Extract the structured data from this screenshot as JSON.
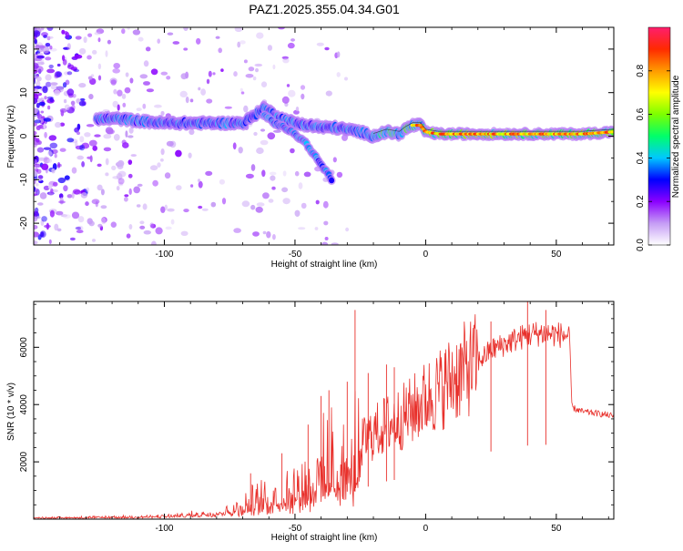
{
  "title": "PAZ1.2025.355.04.34.G01",
  "chart_data": [
    {
      "type": "heatmap",
      "xlabel": "Height of straight line (km)",
      "ylabel": "Frequency (Hz)",
      "xlim": [
        -150,
        72
      ],
      "ylim": [
        -25,
        25
      ],
      "x_ticks": [
        -100,
        -50,
        0,
        50
      ],
      "x_tick_labels": [
        "-100",
        "-50",
        "0",
        "50"
      ],
      "y_ticks": [
        -20,
        -10,
        0,
        10,
        20
      ],
      "y_tick_labels": [
        "-20",
        "-10",
        "0",
        "10",
        "20"
      ],
      "colorbar": {
        "label": "Normalized spectral amplitude",
        "range": [
          0,
          1
        ],
        "ticks": [
          0.0,
          0.2,
          0.4,
          0.6,
          0.8
        ],
        "tick_labels": [
          "0.0",
          "0.2",
          "0.4",
          "0.6",
          "0.8"
        ],
        "colors": [
          "#ffffff",
          "#c59cf5",
          "#8b00ff",
          "#0000ff",
          "#00c8ff",
          "#00ff6a",
          "#7dff00",
          "#ffff00",
          "#ff9a00",
          "#ff2a00",
          "#ff1e6e"
        ]
      },
      "main_ridge": [
        [
          -125,
          4
        ],
        [
          -118,
          4
        ],
        [
          -110,
          3.5
        ],
        [
          -100,
          3
        ],
        [
          -90,
          3
        ],
        [
          -80,
          3
        ],
        [
          -70,
          3
        ],
        [
          -65,
          5
        ],
        [
          -62,
          6.5
        ],
        [
          -58,
          5
        ],
        [
          -55,
          4
        ],
        [
          -50,
          3
        ],
        [
          -45,
          2.5
        ],
        [
          -40,
          2
        ],
        [
          -35,
          2
        ],
        [
          -30,
          1.5
        ],
        [
          -25,
          1
        ],
        [
          -20,
          0
        ],
        [
          -15,
          1
        ],
        [
          -10,
          0.5
        ],
        [
          -8,
          1.5
        ],
        [
          -5,
          2.5
        ],
        [
          -2,
          2.5
        ],
        [
          0,
          1
        ],
        [
          5,
          0.5
        ],
        [
          10,
          0.5
        ],
        [
          20,
          0.5
        ],
        [
          30,
          0.5
        ],
        [
          40,
          0.5
        ],
        [
          50,
          0.5
        ],
        [
          60,
          0.5
        ],
        [
          72,
          1
        ]
      ],
      "secondary_branch": [
        [
          -62,
          5
        ],
        [
          -58,
          3
        ],
        [
          -54,
          2
        ],
        [
          -50,
          0.5
        ],
        [
          -46,
          -1.5
        ],
        [
          -43,
          -4
        ],
        [
          -40,
          -6.5
        ],
        [
          -37,
          -9
        ],
        [
          -36,
          -10
        ]
      ]
    },
    {
      "type": "line",
      "xlabel": "Height of straight line (km)",
      "ylabel": "SNR (10 * v/v)",
      "xlim": [
        -150,
        72
      ],
      "ylim": [
        0,
        7600
      ],
      "x_ticks": [
        -100,
        -50,
        0,
        50
      ],
      "x_tick_labels": [
        "-100",
        "-50",
        "0",
        "50"
      ],
      "y_ticks": [
        2000,
        4000,
        6000
      ],
      "y_tick_labels": [
        "2000",
        "4000",
        "6000"
      ],
      "line_color": "#e8302b",
      "envelope": [
        [
          -150,
          60
        ],
        [
          -130,
          80
        ],
        [
          -110,
          100
        ],
        [
          -100,
          130
        ],
        [
          -90,
          200
        ],
        [
          -80,
          300
        ],
        [
          -70,
          550
        ],
        [
          -60,
          900
        ],
        [
          -55,
          1100
        ],
        [
          -50,
          1300
        ],
        [
          -45,
          1600
        ],
        [
          -40,
          1900
        ],
        [
          -35,
          2200
        ],
        [
          -30,
          2400
        ],
        [
          -28,
          2300
        ],
        [
          -25,
          2600
        ],
        [
          -20,
          3000
        ],
        [
          -15,
          3300
        ],
        [
          -10,
          3500
        ],
        [
          -5,
          3800
        ],
        [
          0,
          4200
        ],
        [
          5,
          4500
        ],
        [
          10,
          4900
        ],
        [
          15,
          5200
        ],
        [
          20,
          5500
        ],
        [
          25,
          5900
        ],
        [
          30,
          6100
        ],
        [
          35,
          6300
        ],
        [
          40,
          6450
        ],
        [
          45,
          6500
        ],
        [
          50,
          6450
        ],
        [
          55,
          6400
        ],
        [
          56,
          3900
        ],
        [
          60,
          3750
        ],
        [
          65,
          3700
        ],
        [
          72,
          3600
        ]
      ],
      "spikes": [
        [
          -27,
          7300
        ],
        [
          -67,
          1600
        ],
        [
          -55,
          2300
        ],
        [
          -45,
          3300
        ],
        [
          -40,
          4300
        ],
        [
          -37,
          4500
        ],
        [
          -30,
          4800
        ],
        [
          -22,
          5100
        ],
        [
          -15,
          5400
        ],
        [
          -12,
          5300
        ],
        [
          39,
          7650
        ],
        [
          25,
          6900
        ],
        [
          46,
          7300
        ]
      ]
    }
  ]
}
